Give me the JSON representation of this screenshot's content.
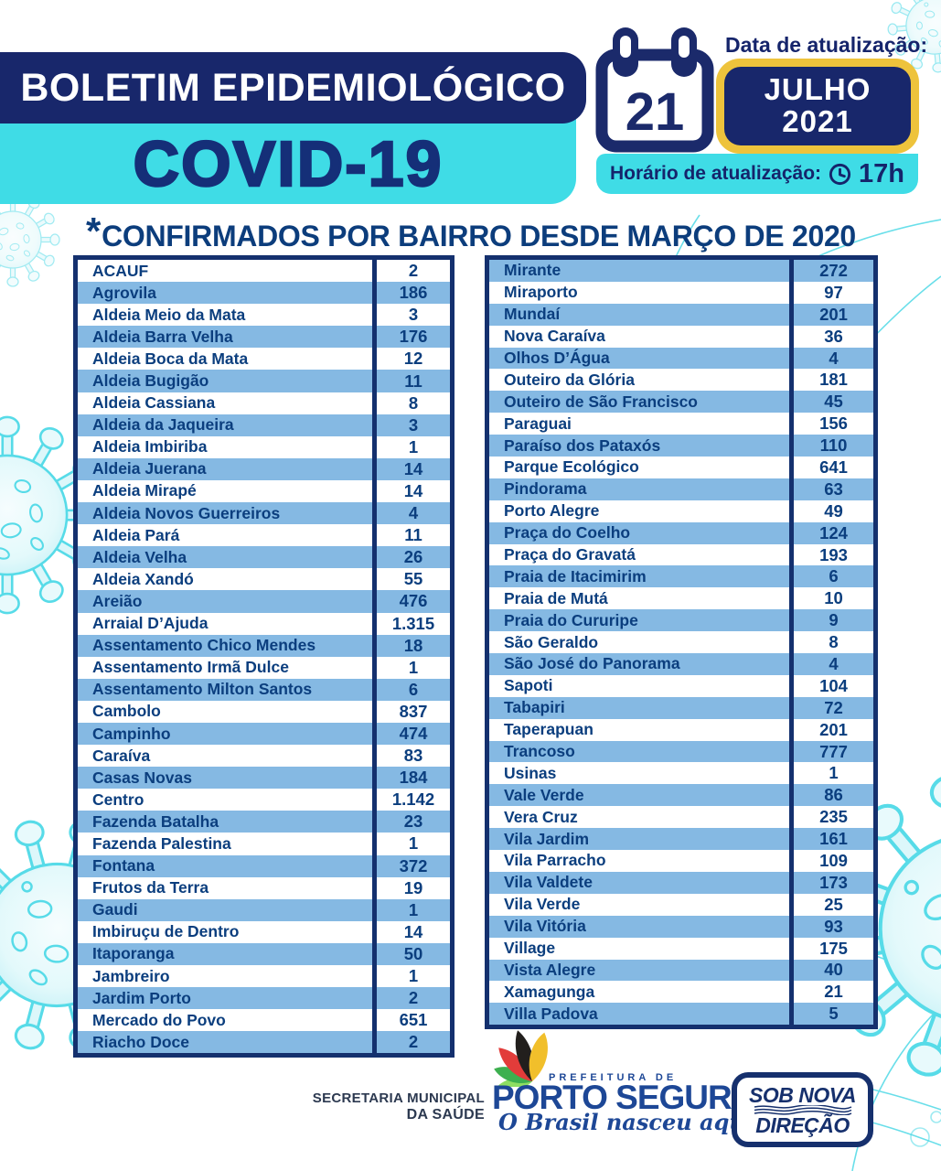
{
  "header": {
    "title": "BOLETIM EPIDEMIOLÓGICO",
    "subtitle": "COVID-19",
    "date_label": "Data de atualização:",
    "calendar_day": "21",
    "month": "JULHO",
    "year": "2021",
    "time_label": "Horário de atualização:",
    "time_value": "17h"
  },
  "section": {
    "star": "*",
    "title": "CONFIRMADOS POR BAIRRO DESDE MARÇO DE 2020"
  },
  "tables": {
    "left": [
      {
        "bairro": "ACAUF",
        "casos": "2"
      },
      {
        "bairro": "Agrovila",
        "casos": "186"
      },
      {
        "bairro": "Aldeia Meio da Mata",
        "casos": "3"
      },
      {
        "bairro": "Aldeia Barra Velha",
        "casos": "176"
      },
      {
        "bairro": "Aldeia Boca da Mata",
        "casos": "12"
      },
      {
        "bairro": "Aldeia Bugigão",
        "casos": "11"
      },
      {
        "bairro": "Aldeia Cassiana",
        "casos": "8"
      },
      {
        "bairro": "Aldeia da Jaqueira",
        "casos": "3"
      },
      {
        "bairro": "Aldeia Imbiriba",
        "casos": "1"
      },
      {
        "bairro": "Aldeia Juerana",
        "casos": "14"
      },
      {
        "bairro": "Aldeia Mirapé",
        "casos": "14"
      },
      {
        "bairro": "Aldeia Novos Guerreiros",
        "casos": "4"
      },
      {
        "bairro": "Aldeia Pará",
        "casos": "11"
      },
      {
        "bairro": "Aldeia Velha",
        "casos": "26"
      },
      {
        "bairro": "Aldeia Xandó",
        "casos": "55"
      },
      {
        "bairro": "Areião",
        "casos": "476"
      },
      {
        "bairro": "Arraial D’Ajuda",
        "casos": "1.315"
      },
      {
        "bairro": "Assentamento Chico Mendes",
        "casos": "18"
      },
      {
        "bairro": "Assentamento Irmã Dulce",
        "casos": "1"
      },
      {
        "bairro": "Assentamento Milton Santos",
        "casos": "6"
      },
      {
        "bairro": "Cambolo",
        "casos": "837"
      },
      {
        "bairro": "Campinho",
        "casos": "474"
      },
      {
        "bairro": "Caraíva",
        "casos": "83"
      },
      {
        "bairro": "Casas Novas",
        "casos": "184"
      },
      {
        "bairro": "Centro",
        "casos": "1.142"
      },
      {
        "bairro": "Fazenda Batalha",
        "casos": "23"
      },
      {
        "bairro": "Fazenda Palestina",
        "casos": "1"
      },
      {
        "bairro": "Fontana",
        "casos": "372"
      },
      {
        "bairro": "Frutos da Terra",
        "casos": "19"
      },
      {
        "bairro": "Gaudi",
        "casos": "1"
      },
      {
        "bairro": "Imbiruçu de Dentro",
        "casos": "14"
      },
      {
        "bairro": "Itaporanga",
        "casos": "50"
      },
      {
        "bairro": "Jambreiro",
        "casos": "1"
      },
      {
        "bairro": "Jardim Porto",
        "casos": "2"
      },
      {
        "bairro": "Mercado do Povo",
        "casos": "651"
      },
      {
        "bairro": "Riacho Doce",
        "casos": "2"
      }
    ],
    "right": [
      {
        "bairro": "Mirante",
        "casos": "272"
      },
      {
        "bairro": "Miraporto",
        "casos": "97"
      },
      {
        "bairro": "Mundaí",
        "casos": "201"
      },
      {
        "bairro": "Nova Caraíva",
        "casos": "36"
      },
      {
        "bairro": "Olhos D’Água",
        "casos": "4"
      },
      {
        "bairro": "Outeiro da Glória",
        "casos": "181"
      },
      {
        "bairro": "Outeiro de São Francisco",
        "casos": "45"
      },
      {
        "bairro": "Paraguai",
        "casos": "156"
      },
      {
        "bairro": "Paraíso dos Pataxós",
        "casos": "110"
      },
      {
        "bairro": "Parque Ecológico",
        "casos": "641"
      },
      {
        "bairro": "Pindorama",
        "casos": "63"
      },
      {
        "bairro": "Porto Alegre",
        "casos": "49"
      },
      {
        "bairro": "Praça do Coelho",
        "casos": "124"
      },
      {
        "bairro": "Praça do Gravatá",
        "casos": "193"
      },
      {
        "bairro": "Praia de Itacimirim",
        "casos": "6"
      },
      {
        "bairro": "Praia de Mutá",
        "casos": "10"
      },
      {
        "bairro": "Praia do Cururipe",
        "casos": "9"
      },
      {
        "bairro": "São Geraldo",
        "casos": "8"
      },
      {
        "bairro": "São José do Panorama",
        "casos": "4"
      },
      {
        "bairro": "Sapoti",
        "casos": "104"
      },
      {
        "bairro": "Tabapiri",
        "casos": "72"
      },
      {
        "bairro": "Taperapuan",
        "casos": "201"
      },
      {
        "bairro": "Trancoso",
        "casos": "777"
      },
      {
        "bairro": "Usinas",
        "casos": "1"
      },
      {
        "bairro": "Vale Verde",
        "casos": "86"
      },
      {
        "bairro": "Vera Cruz",
        "casos": "235"
      },
      {
        "bairro": "Vila Jardim",
        "casos": "161"
      },
      {
        "bairro": "Vila Parracho",
        "casos": "109"
      },
      {
        "bairro": "Vila Valdete",
        "casos": "173"
      },
      {
        "bairro": "Vila Verde",
        "casos": "25"
      },
      {
        "bairro": "Vila Vitória",
        "casos": "93"
      },
      {
        "bairro": "Village",
        "casos": "175"
      },
      {
        "bairro": "Vista Alegre",
        "casos": "40"
      },
      {
        "bairro": "Xamagunga",
        "casos": "21"
      },
      {
        "bairro": "Villa Padova",
        "casos": "5"
      }
    ]
  },
  "footer": {
    "secretaria_line1": "SECRETARIA MUNICIPAL",
    "secretaria_line2": "DA SAÚDE",
    "prefeitura_label": "PREFEITURA DE",
    "city": "PORTO SEGURO",
    "slogan": "O Brasil nasceu aqui !",
    "badge_line1": "SOB NOVA",
    "badge_line2": "DIREÇÃO"
  },
  "colors": {
    "navy": "#18276b",
    "cyan": "#3fdce6",
    "yellow": "#eec33c",
    "row_blue": "#85b9e3",
    "table_border": "#14306e",
    "text_blue": "#0b3e7e",
    "logo_blue": "#1d4796",
    "virus_outline": "#57dbe8"
  }
}
